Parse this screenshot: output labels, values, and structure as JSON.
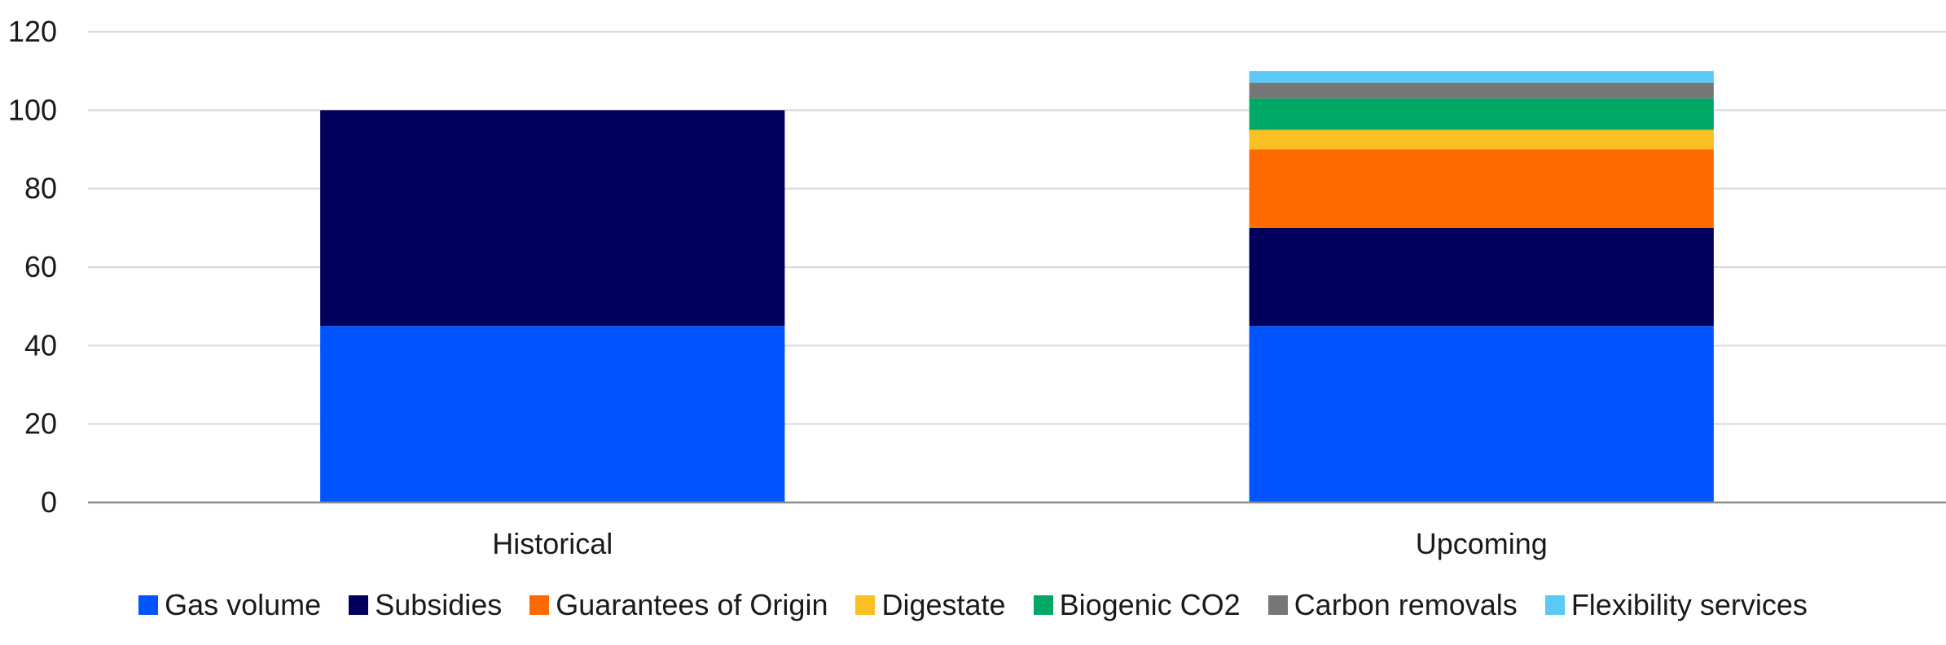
{
  "chart_data": {
    "type": "bar",
    "stacked": true,
    "categories": [
      "Historical",
      "Upcoming"
    ],
    "series": [
      {
        "name": "Gas volume",
        "color": "#0055ff",
        "values": [
          45,
          45
        ]
      },
      {
        "name": "Subsidies",
        "color": "#00005c",
        "values": [
          55,
          25
        ]
      },
      {
        "name": "Guarantees of Origin",
        "color": "#ff6a00",
        "values": [
          0,
          20
        ]
      },
      {
        "name": "Digestate",
        "color": "#fbbf24",
        "values": [
          0,
          5
        ]
      },
      {
        "name": "Biogenic CO2",
        "color": "#00aa66",
        "values": [
          0,
          8
        ]
      },
      {
        "name": "Carbon removals",
        "color": "#777777",
        "values": [
          0,
          4
        ]
      },
      {
        "name": "Flexibility services",
        "color": "#5bc8f5",
        "values": [
          0,
          3
        ]
      }
    ],
    "yticks": [
      "0",
      "20",
      "40",
      "60",
      "80",
      "100",
      "120"
    ],
    "ylim": [
      0,
      120
    ],
    "grid": true,
    "legend_position": "bottom"
  }
}
